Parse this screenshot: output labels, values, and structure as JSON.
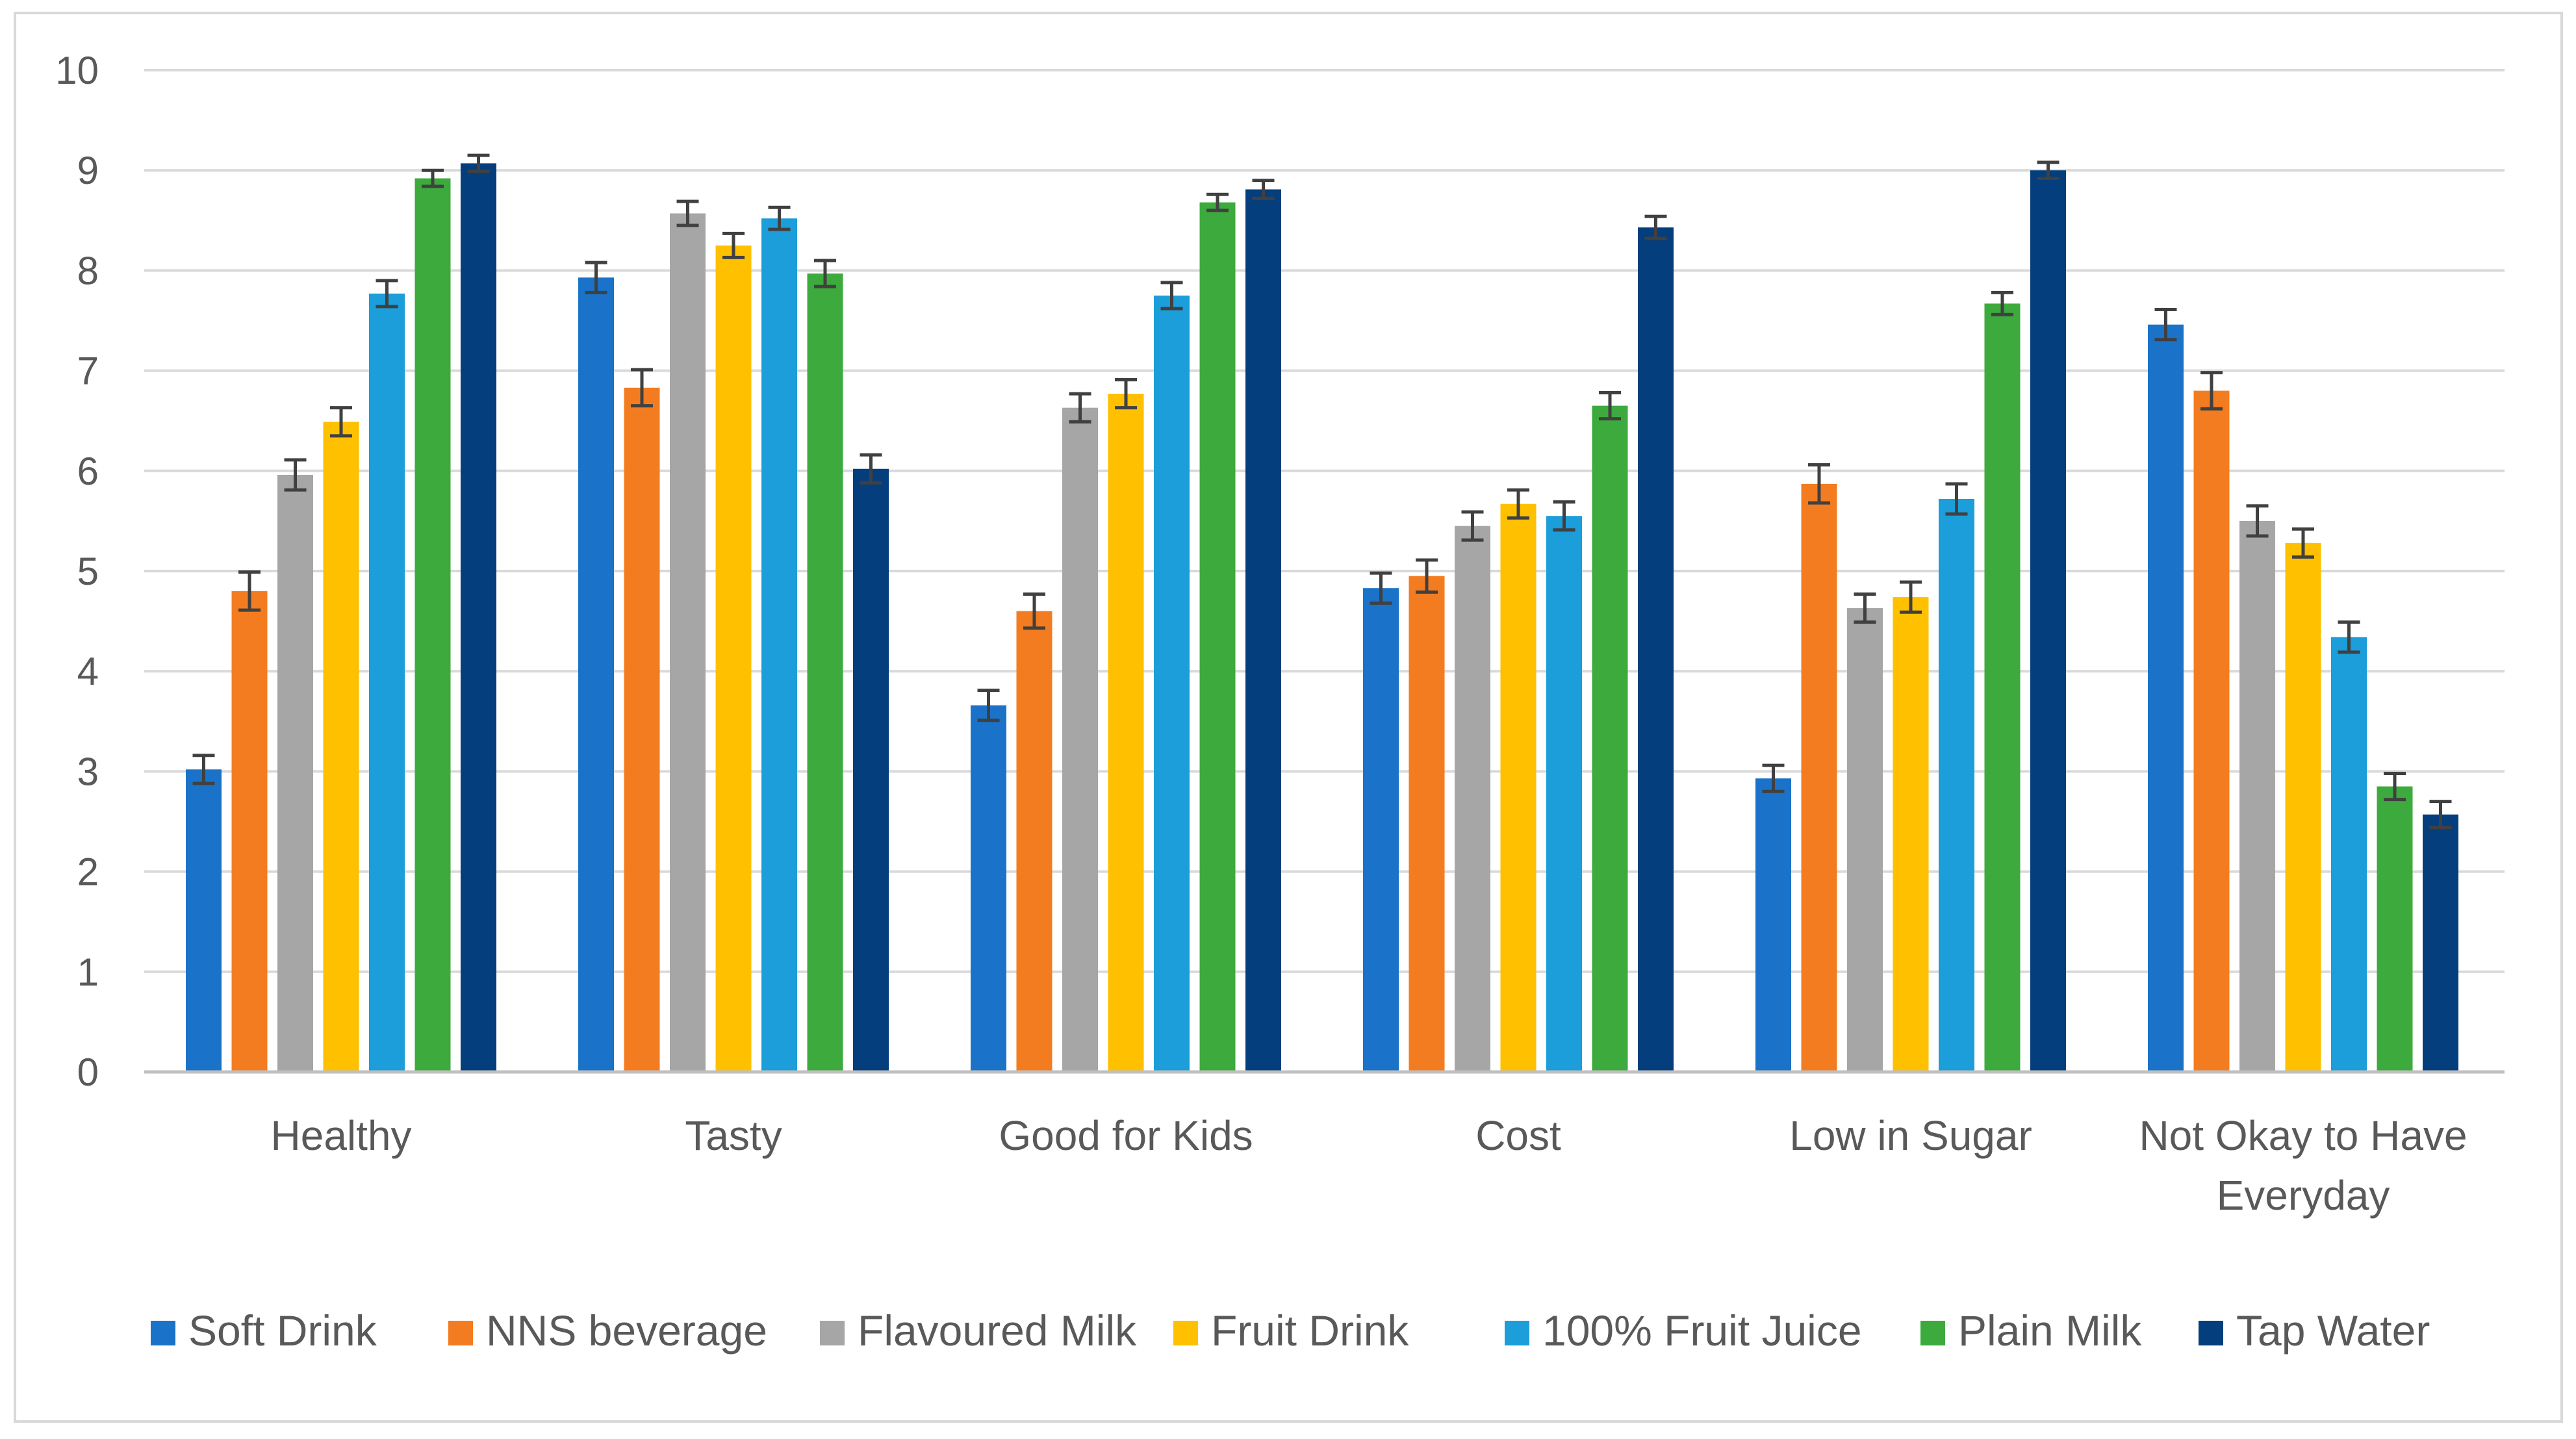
{
  "chart_data": {
    "type": "bar",
    "title": "",
    "xlabel": "",
    "ylabel": "",
    "ylim": [
      0,
      10
    ],
    "yticks": [
      "0",
      "1",
      "2",
      "3",
      "4",
      "5",
      "6",
      "7",
      "8",
      "9",
      "10"
    ],
    "grid": true,
    "legend_position": "bottom",
    "categories": [
      [
        "Healthy"
      ],
      [
        "Tasty"
      ],
      [
        "Good for Kids"
      ],
      [
        "Cost"
      ],
      [
        "Low in Sugar"
      ],
      [
        "Not Okay to Have",
        "Everyday"
      ]
    ],
    "series": [
      {
        "name": "Soft Drink",
        "color": "#1A73C9",
        "values": [
          3.02,
          7.93,
          3.66,
          4.83,
          2.93,
          7.46
        ],
        "errors": [
          0.14,
          0.15,
          0.15,
          0.15,
          0.13,
          0.15
        ]
      },
      {
        "name": "NNS beverage",
        "color": "#F47C20",
        "values": [
          4.8,
          6.83,
          4.6,
          4.95,
          5.87,
          6.8
        ],
        "errors": [
          0.19,
          0.18,
          0.17,
          0.16,
          0.19,
          0.18
        ]
      },
      {
        "name": "Flavoured Milk",
        "color": "#A6A6A6",
        "values": [
          5.96,
          8.57,
          6.63,
          5.45,
          4.63,
          5.5
        ],
        "errors": [
          0.15,
          0.12,
          0.14,
          0.14,
          0.14,
          0.15
        ]
      },
      {
        "name": "Fruit Drink",
        "color": "#FFC000",
        "values": [
          6.49,
          8.25,
          6.77,
          5.67,
          4.74,
          5.28
        ],
        "errors": [
          0.14,
          0.12,
          0.14,
          0.14,
          0.15,
          0.14
        ]
      },
      {
        "name": "100% Fruit Juice",
        "color": "#1B9ED9",
        "values": [
          7.77,
          8.52,
          7.75,
          5.55,
          5.72,
          4.34
        ],
        "errors": [
          0.13,
          0.11,
          0.13,
          0.14,
          0.15,
          0.15
        ]
      },
      {
        "name": "Plain Milk",
        "color": "#3DAA3D",
        "values": [
          8.92,
          7.97,
          8.68,
          6.65,
          7.67,
          2.85
        ],
        "errors": [
          0.08,
          0.13,
          0.08,
          0.13,
          0.11,
          0.13
        ]
      },
      {
        "name": "Tap Water",
        "color": "#043E7D",
        "values": [
          9.07,
          6.02,
          8.81,
          8.43,
          9.0,
          2.57
        ],
        "errors": [
          0.08,
          0.14,
          0.09,
          0.11,
          0.08,
          0.13
        ]
      }
    ]
  }
}
